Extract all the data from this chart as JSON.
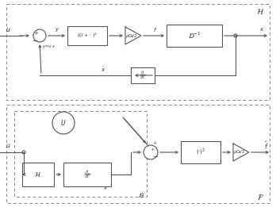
{
  "bg_color": "#ffffff",
  "lc": "#666666",
  "tc": "#333333",
  "fig_width": 3.48,
  "fig_height": 2.61,
  "dpi": 100
}
